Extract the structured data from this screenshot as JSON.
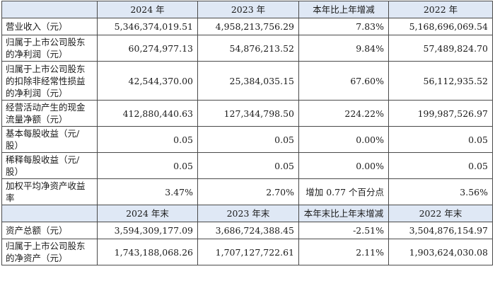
{
  "header1": [
    "",
    "2024 年",
    "2023 年",
    "本年比上年增减",
    "2022 年"
  ],
  "rows1": [
    {
      "label": "营业收入（元）",
      "cells": [
        "5,346,374,019.51",
        "4,958,213,756.29",
        "7.83%",
        "5,168,696,069.54"
      ]
    },
    {
      "label": "归属于上市公司股东\n的净利润（元）",
      "cells": [
        "60,274,977.13",
        "54,876,213.52",
        "9.84%",
        "57,489,824.70"
      ]
    },
    {
      "label": "归属于上市公司股东\n的扣除非经常性损益\n的净利润（元）",
      "cells": [
        "42,544,370.00",
        "25,384,035.15",
        "67.60%",
        "56,112,935.52"
      ]
    },
    {
      "label": "经营活动产生的现金\n流量净额（元）",
      "cells": [
        "412,880,440.63",
        "127,344,798.50",
        "224.22%",
        "199,987,526.97"
      ]
    },
    {
      "label": "基本每股收益（元/\n股）",
      "cells": [
        "0.05",
        "0.05",
        "0.00%",
        "0.05"
      ]
    },
    {
      "label": "稀释每股收益（元/\n股）",
      "cells": [
        "0.05",
        "0.05",
        "0.00%",
        "0.05"
      ]
    },
    {
      "label": "加权平均净资产收益\n率",
      "cells": [
        "3.47%",
        "2.70%",
        "增加 0.77 个百分点",
        "3.56%"
      ]
    }
  ],
  "header2": [
    "",
    "2024 年末",
    "2023 年末",
    "本年末比上年末增减",
    "2022 年末"
  ],
  "rows2": [
    {
      "label": "资产总额（元）",
      "cells": [
        "3,594,309,177.09",
        "3,686,724,388.45",
        "-2.51%",
        "3,504,876,154.97"
      ]
    },
    {
      "label": "归属于上市公司股东\n的净资产（元）",
      "cells": [
        "1,743,188,068.26",
        "1,707,127,722.61",
        "2.11%",
        "1,903,624,030.08"
      ]
    }
  ]
}
